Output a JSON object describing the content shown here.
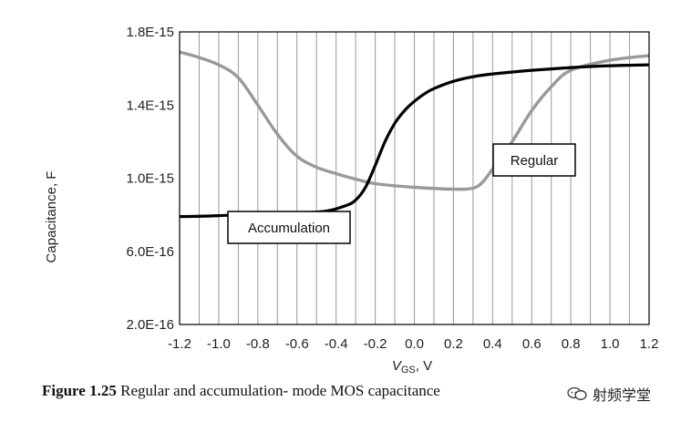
{
  "chart_data": {
    "type": "line",
    "xlabel_main": "V",
    "xlabel_sub": "GS",
    "xlabel_unit": ", V",
    "ylabel": "Capacitance, F",
    "xlim": [
      -1.2,
      1.2
    ],
    "ylim": [
      2e-16,
      1.8e-15
    ],
    "x_ticks": [
      "-1.2",
      "-1.0",
      "-0.8",
      "-0.6",
      "-0.4",
      "-0.2",
      "0.0",
      "0.2",
      "0.4",
      "0.6",
      "0.8",
      "1.0",
      "1.2"
    ],
    "y_ticks": [
      "2.0E-16",
      "6.0E-16",
      "1.0E-15",
      "1.4E-15",
      "1.8E-15"
    ],
    "grid_x_minor_step": 0.1,
    "series": [
      {
        "name": "Accumulation",
        "color": "#000000",
        "x": [
          -1.2,
          -1.0,
          -0.8,
          -0.6,
          -0.45,
          -0.35,
          -0.3,
          -0.25,
          -0.2,
          -0.15,
          -0.1,
          -0.05,
          0.0,
          0.05,
          0.1,
          0.2,
          0.3,
          0.4,
          0.6,
          0.8,
          1.0,
          1.2
        ],
        "y": [
          7.9e-16,
          7.95e-16,
          8.05e-16,
          8.1e-16,
          8.2e-16,
          8.5e-16,
          8.8e-16,
          9.5e-16,
          1.07e-15,
          1.2e-15,
          1.3e-15,
          1.37e-15,
          1.42e-15,
          1.46e-15,
          1.49e-15,
          1.53e-15,
          1.555e-15,
          1.57e-15,
          1.59e-15,
          1.605e-15,
          1.615e-15,
          1.62e-15
        ]
      },
      {
        "name": "Regular",
        "color": "#999999",
        "x": [
          -1.2,
          -1.1,
          -1.0,
          -0.9,
          -0.8,
          -0.7,
          -0.6,
          -0.5,
          -0.4,
          -0.3,
          -0.2,
          0.0,
          0.2,
          0.3,
          0.35,
          0.4,
          0.5,
          0.6,
          0.7,
          0.8,
          1.0,
          1.2
        ],
        "y": [
          1.69e-15,
          1.66e-15,
          1.62e-15,
          1.55e-15,
          1.4e-15,
          1.24e-15,
          1.12e-15,
          1.06e-15,
          1.025e-15,
          9.95e-16,
          9.7e-16,
          9.5e-16,
          9.4e-16,
          9.45e-16,
          9.8e-16,
          1.05e-15,
          1.2e-15,
          1.37e-15,
          1.5e-15,
          1.59e-15,
          1.645e-15,
          1.67e-15
        ]
      }
    ],
    "callouts": [
      {
        "text": "Accumulation",
        "series": "Accumulation"
      },
      {
        "text": "Regular",
        "series": "Regular"
      }
    ]
  },
  "caption": {
    "label": "Figure 1.25",
    "text": " Regular and accumulation- mode MOS capacitance"
  },
  "watermark": {
    "text": "射频学堂",
    "icon": "chat-bubbles-icon"
  }
}
